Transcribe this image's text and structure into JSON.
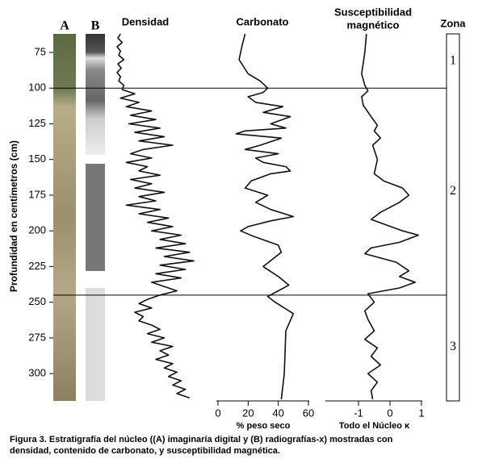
{
  "depth_axis": {
    "label": "Profundidad en centímetros (cm)",
    "ylim": [
      62,
      318
    ],
    "yticks": [
      75,
      100,
      125,
      150,
      175,
      200,
      225,
      250,
      275,
      300
    ]
  },
  "cores": {
    "a_label": "A",
    "b_label": "B"
  },
  "chart_data": [
    {
      "type": "line",
      "title": "Densidad",
      "color": "#111111",
      "y": [
        62,
        65,
        68,
        71,
        74,
        77,
        80,
        83,
        86,
        89,
        92,
        95,
        98,
        101,
        104,
        107,
        110,
        113,
        116,
        119,
        122,
        125,
        128,
        131,
        134,
        137,
        140,
        143,
        146,
        149,
        152,
        155,
        158,
        161,
        164,
        167,
        170,
        173,
        176,
        179,
        182,
        185,
        188,
        191,
        194,
        197,
        200,
        203,
        206,
        209,
        212,
        215,
        218,
        221,
        224,
        227,
        230,
        233,
        236,
        239,
        242,
        245,
        248,
        251,
        254,
        257,
        260,
        263,
        266,
        269,
        272,
        275,
        278,
        281,
        284,
        287,
        290,
        293,
        296,
        299,
        302,
        305,
        308,
        311,
        314,
        317
      ],
      "values": [
        8,
        5,
        10,
        4,
        8,
        6,
        12,
        5,
        9,
        4,
        8,
        6,
        12,
        10,
        25,
        8,
        30,
        15,
        45,
        20,
        50,
        18,
        55,
        25,
        60,
        30,
        70,
        35,
        20,
        45,
        15,
        40,
        30,
        55,
        20,
        45,
        25,
        60,
        30,
        50,
        15,
        55,
        30,
        65,
        40,
        70,
        45,
        80,
        55,
        85,
        50,
        90,
        60,
        95,
        55,
        85,
        50,
        80,
        45,
        60,
        75,
        55,
        40,
        30,
        45,
        25,
        35,
        30,
        45,
        55,
        40,
        60,
        45,
        70,
        55,
        65,
        50,
        70,
        60,
        75,
        65,
        80,
        70,
        85,
        75,
        90
      ]
    },
    {
      "type": "line",
      "title": "Carbonato",
      "x_label": "% peso seco",
      "color": "#111111",
      "xlim": [
        0,
        60
      ],
      "xticks": [
        0,
        20,
        40,
        60
      ],
      "y": [
        62,
        70,
        80,
        90,
        95,
        100,
        103,
        106,
        110,
        113,
        117,
        120,
        125,
        128,
        130,
        132,
        135,
        140,
        143,
        146,
        149,
        152,
        155,
        158,
        160,
        165,
        170,
        175,
        180,
        185,
        190,
        193,
        197,
        200,
        204,
        210,
        215,
        225,
        232,
        238,
        242,
        246,
        250,
        258,
        270,
        300,
        318
      ],
      "values": [
        18,
        16,
        14,
        20,
        28,
        33,
        30,
        20,
        25,
        43,
        30,
        48,
        35,
        45,
        18,
        12,
        42,
        28,
        18,
        40,
        25,
        30,
        45,
        48,
        35,
        22,
        18,
        33,
        25,
        35,
        50,
        35,
        20,
        15,
        24,
        40,
        42,
        30,
        40,
        47,
        40,
        33,
        38,
        50,
        45,
        44,
        42
      ]
    },
    {
      "type": "line",
      "title": "Susceptibilidad",
      "subtitle": "magnético",
      "x_label": "Todo el Núcleo κ",
      "color": "#111111",
      "xlim": [
        -2,
        1
      ],
      "xticks": [
        -1,
        0,
        1
      ],
      "y": [
        62,
        75,
        90,
        98,
        102,
        106,
        112,
        120,
        126,
        130,
        135,
        140,
        150,
        160,
        165,
        170,
        175,
        180,
        187,
        192,
        200,
        203,
        208,
        212,
        216,
        222,
        228,
        232,
        236,
        240,
        244,
        250,
        256,
        262,
        270,
        276,
        282,
        288,
        294,
        300,
        306,
        312,
        318
      ],
      "values": [
        -0.75,
        -0.8,
        -0.9,
        -0.8,
        -0.7,
        -0.9,
        -0.85,
        -0.6,
        -0.4,
        -0.5,
        -0.3,
        -0.55,
        -0.4,
        -0.5,
        -0.2,
        0.4,
        0.6,
        0.3,
        -0.3,
        -0.6,
        0.4,
        0.9,
        0.3,
        -0.6,
        -0.8,
        0.2,
        0.6,
        0.3,
        0.8,
        0.3,
        -0.7,
        -0.5,
        -0.8,
        -0.7,
        -0.5,
        -0.8,
        -0.4,
        -0.6,
        -0.3,
        -0.7,
        -0.4,
        -0.6,
        -0.55
      ]
    }
  ],
  "zones": {
    "title": "Zona",
    "labels": [
      "1",
      "2",
      "3"
    ],
    "boundaries": [
      100,
      245
    ]
  },
  "caption": [
    "Figura 3.  Estratigrafía del núcleo ((A) imaginaría digital y (B) radiografías-x)  mostradas con",
    "densidad, contenido de carbonato, y susceptibilidad magnética."
  ]
}
